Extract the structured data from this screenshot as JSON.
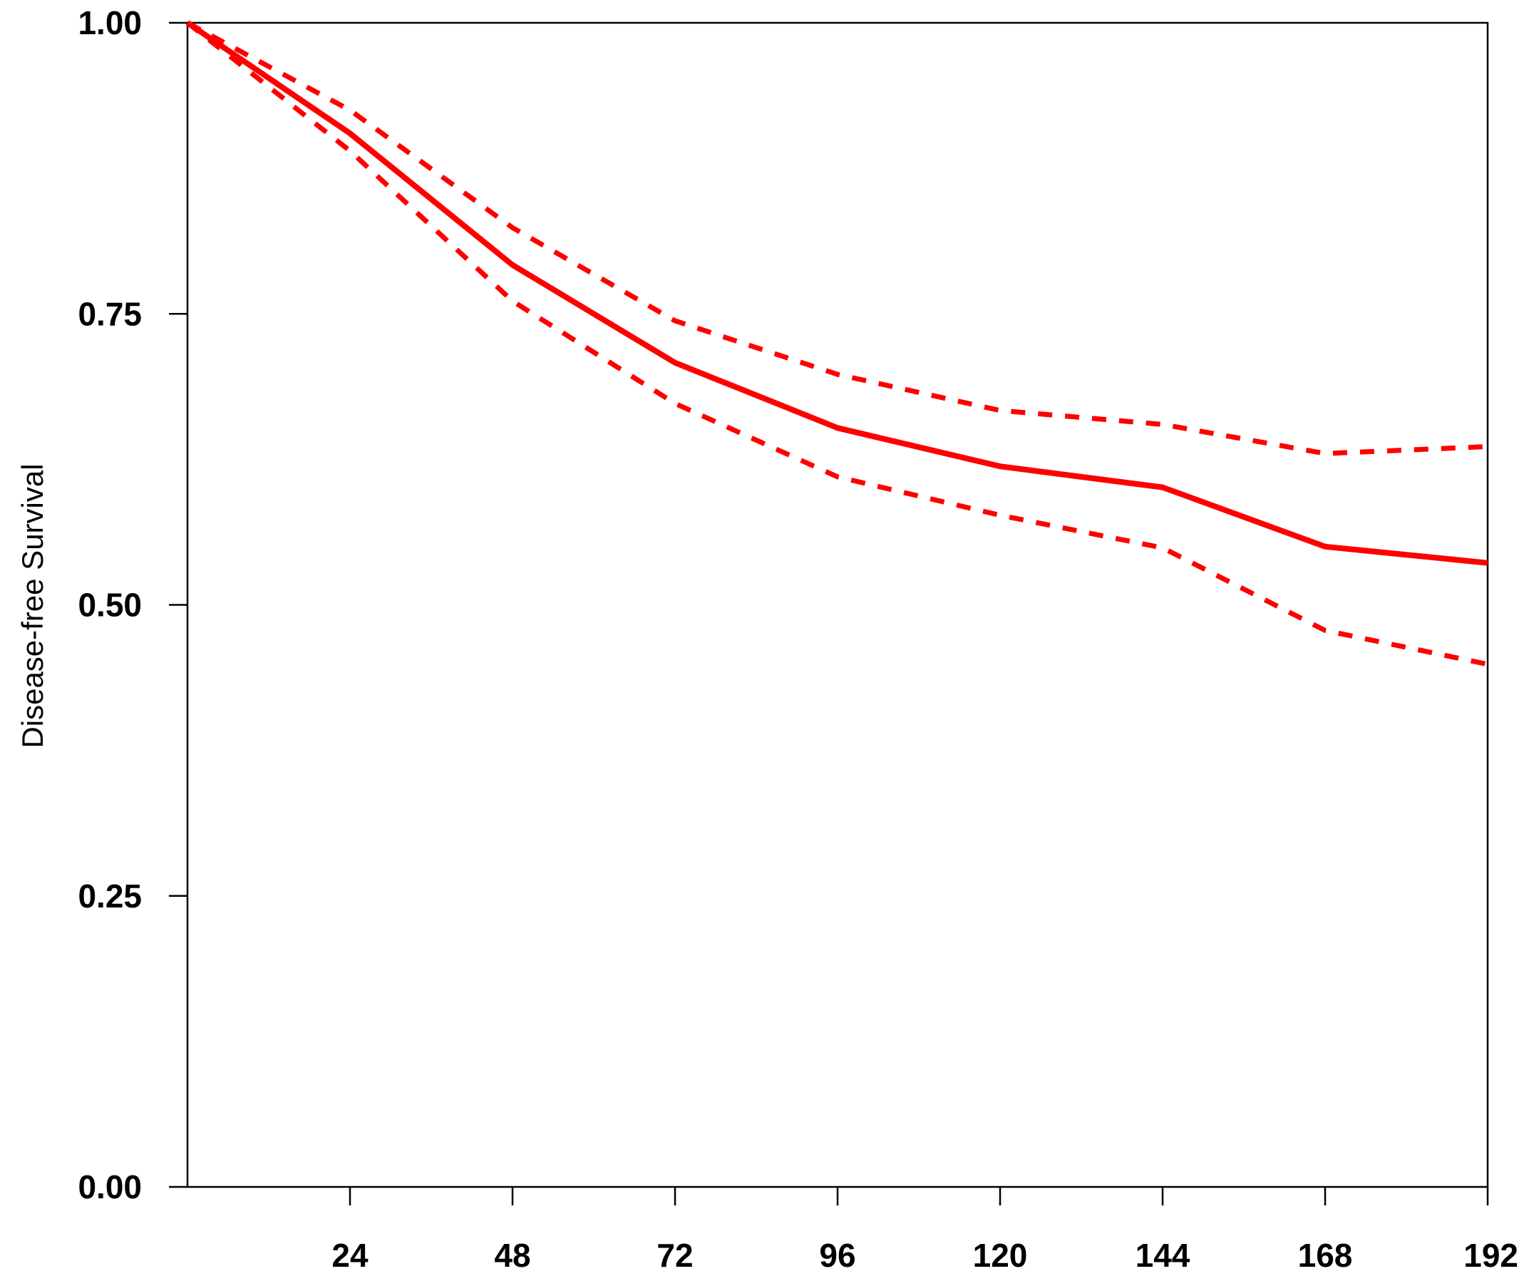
{
  "chart_data": {
    "type": "line",
    "title": "",
    "xlabel": "",
    "ylabel": "Disease-free Survival",
    "xlim": [
      0,
      192
    ],
    "ylim": [
      0,
      1
    ],
    "x_ticks": [
      24,
      48,
      72,
      96,
      120,
      144,
      168,
      192
    ],
    "x_tick_labels": [
      "24",
      "48",
      "72",
      "96",
      "120",
      "144",
      "168",
      "192"
    ],
    "y_ticks": [
      0,
      0.25,
      0.5,
      0.75,
      1
    ],
    "y_tick_labels": [
      "0.00",
      "0.25",
      "0.50",
      "0.75",
      "1.00"
    ],
    "grid": false,
    "legend": "none",
    "x": [
      0,
      24,
      48,
      72,
      96,
      120,
      144,
      168,
      192
    ],
    "series": [
      {
        "role": "estimate",
        "style": "solid",
        "color": "#ff0000",
        "values": [
          1.0,
          0.905,
          0.792,
          0.708,
          0.652,
          0.619,
          0.601,
          0.55,
          0.536
        ]
      },
      {
        "role": "upper-confidence-bound",
        "style": "dashed",
        "color": "#ff0000",
        "values": [
          1.0,
          0.925,
          0.824,
          0.744,
          0.698,
          0.667,
          0.655,
          0.63,
          0.636
        ]
      },
      {
        "role": "lower-confidence-bound",
        "style": "dashed",
        "color": "#ff0000",
        "values": [
          1.0,
          0.89,
          0.761,
          0.673,
          0.61,
          0.577,
          0.549,
          0.478,
          0.449
        ]
      }
    ]
  }
}
